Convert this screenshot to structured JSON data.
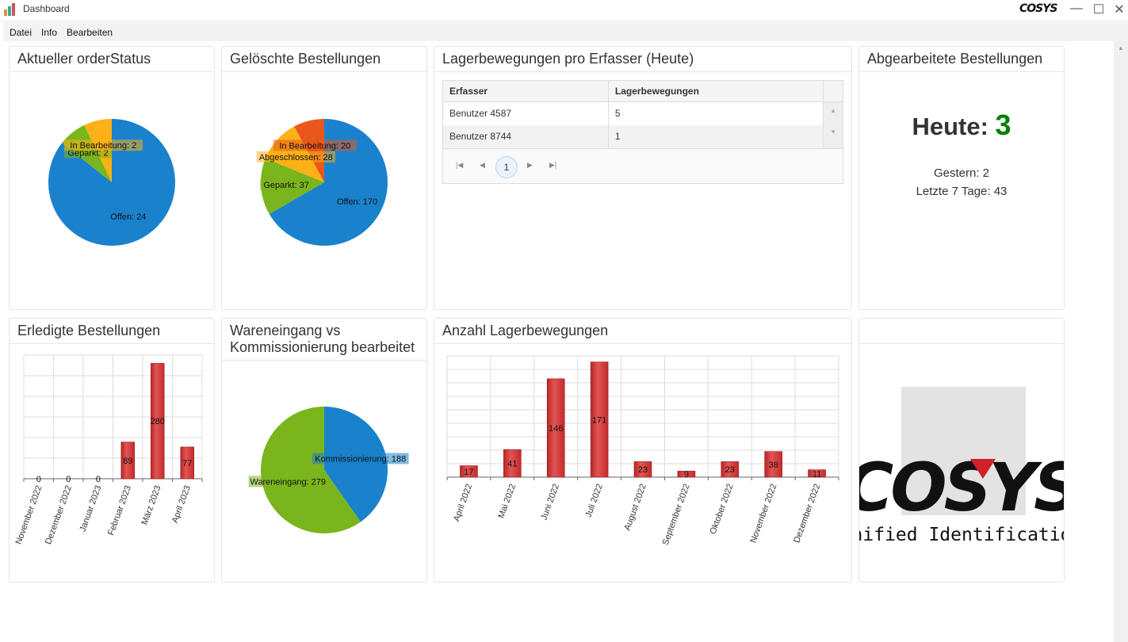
{
  "window": {
    "title": "Dashboard",
    "logo_text": "COSYS"
  },
  "menu": [
    "Datei",
    "Info",
    "Bearbeiten"
  ],
  "panels": {
    "order_status": {
      "title": "Aktueller orderStatus"
    },
    "deleted": {
      "title": "Gelöschte Bestellungen"
    },
    "movements_user": {
      "title": "Lagerbewegungen pro Erfasser (Heute)",
      "columns": [
        "Erfasser",
        "Lagerbewegungen"
      ],
      "rows": [
        [
          "Benutzer 4587",
          "5"
        ],
        [
          "Benutzer 8744",
          "1"
        ]
      ],
      "page": "1"
    },
    "processed": {
      "title": "Abgearbeitete Bestellungen",
      "today_label": "Heute:",
      "today_value": "3",
      "yesterday": "Gestern: 2",
      "last7": "Letzte 7 Tage: 43",
      "accent": "#008000"
    },
    "done": {
      "title": "Erledigte Bestellungen"
    },
    "inbound": {
      "title": "Wareneingang vs Kommissionierung bearbeitet"
    },
    "movements": {
      "title": "Anzahl Lagerbewegungen"
    },
    "logo": {
      "brand": "COSYS",
      "tagline": "Unified Identification"
    }
  },
  "chart_data": [
    {
      "type": "pie",
      "id": "order_status",
      "slices": [
        {
          "label": "Offen",
          "value": 24,
          "color": "#1a82cc"
        },
        {
          "label": "Geparkt",
          "value": 2,
          "color": "#7ab51d"
        },
        {
          "label": "In Bearbeitung",
          "value": 2,
          "color": "#fcb116"
        }
      ]
    },
    {
      "type": "pie",
      "id": "deleted",
      "slices": [
        {
          "label": "Offen",
          "value": 170,
          "color": "#1a82cc"
        },
        {
          "label": "Geparkt",
          "value": 37,
          "color": "#7ab51d"
        },
        {
          "label": "Abgeschlossen",
          "value": 28,
          "color": "#fcb116"
        },
        {
          "label": "In Bearbeitung",
          "value": 20,
          "color": "#e8571b"
        }
      ]
    },
    {
      "type": "bar",
      "id": "done",
      "categories": [
        "November 2022",
        "Dezember 2022",
        "Januar 2023",
        "Februar 2023",
        "März 2023",
        "April 2023"
      ],
      "values": [
        0,
        0,
        0,
        89,
        280,
        77
      ],
      "ylim": [
        0,
        300
      ],
      "grid": true,
      "color": "#d33a3a"
    },
    {
      "type": "pie",
      "id": "inbound",
      "slices": [
        {
          "label": "Kommissionierung",
          "value": 188,
          "color": "#1a82cc"
        },
        {
          "label": "Wareneingang",
          "value": 279,
          "color": "#7ab51d"
        }
      ]
    },
    {
      "type": "bar",
      "id": "movements",
      "categories": [
        "April 2022",
        "Mai 2022",
        "Juni 2022",
        "Juli 2022",
        "August 2022",
        "September 2022",
        "Oktober 2022",
        "November 2022",
        "Dezember 2022"
      ],
      "values": [
        17,
        41,
        146,
        171,
        23,
        9,
        23,
        38,
        11
      ],
      "ylim": [
        0,
        180
      ],
      "grid": true,
      "color": "#d33a3a"
    }
  ]
}
